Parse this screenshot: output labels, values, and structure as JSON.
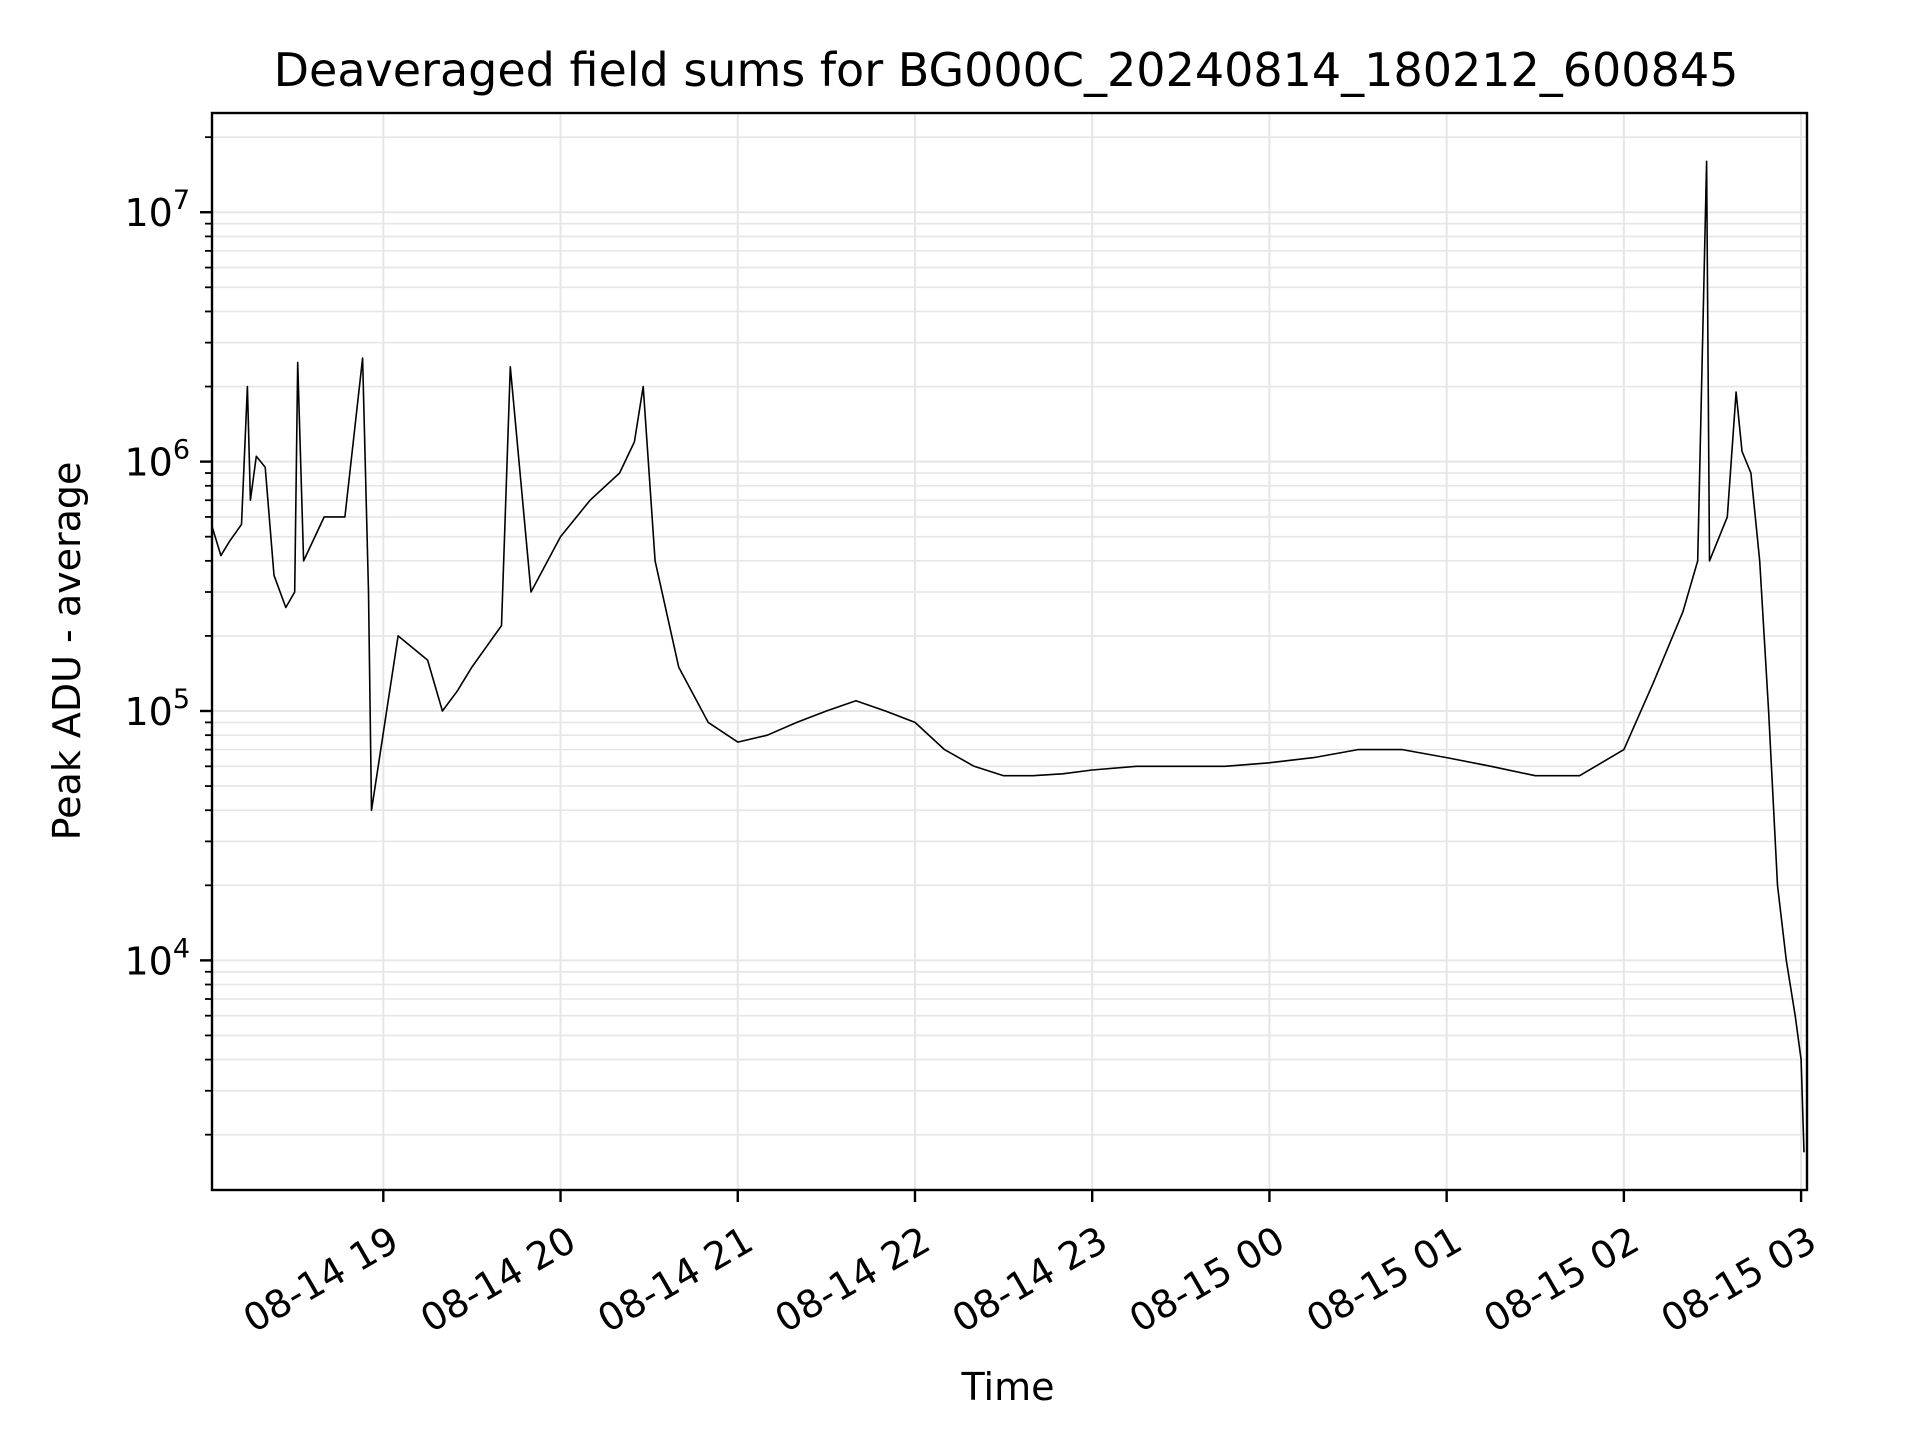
{
  "chart_data": {
    "type": "line",
    "title": "Deaveraged field sums for BG000C_20240814_180212_600845",
    "xlabel": "Time",
    "ylabel": "Peak ADU - average",
    "yscale": "log",
    "ylim": [
      1200,
      25000000
    ],
    "xlim": [
      "2024-08-14 18:02",
      "2024-08-15 03:02"
    ],
    "grid": "on",
    "line_color": "#000000",
    "grid_color": "#e6e6e6",
    "x_ticks": [
      {
        "t": "2024-08-14 19:00",
        "label": "08-14 19"
      },
      {
        "t": "2024-08-14 20:00",
        "label": "08-14 20"
      },
      {
        "t": "2024-08-14 21:00",
        "label": "08-14 21"
      },
      {
        "t": "2024-08-14 22:00",
        "label": "08-14 22"
      },
      {
        "t": "2024-08-14 23:00",
        "label": "08-14 23"
      },
      {
        "t": "2024-08-15 00:00",
        "label": "08-15 00"
      },
      {
        "t": "2024-08-15 01:00",
        "label": "08-15 01"
      },
      {
        "t": "2024-08-15 02:00",
        "label": "08-15 02"
      },
      {
        "t": "2024-08-15 03:00",
        "label": "08-15 03"
      }
    ],
    "y_ticks": [
      {
        "value": 10000,
        "base": "10",
        "exp": "4"
      },
      {
        "value": 100000,
        "base": "10",
        "exp": "5"
      },
      {
        "value": 1000000,
        "base": "10",
        "exp": "6"
      },
      {
        "value": 10000000,
        "base": "10",
        "exp": "7"
      }
    ],
    "series": [
      {
        "points": [
          [
            "2024-08-14 18:02",
            550000
          ],
          [
            "2024-08-14 18:05",
            420000
          ],
          [
            "2024-08-14 18:08",
            480000
          ],
          [
            "2024-08-14 18:12",
            560000
          ],
          [
            "2024-08-14 18:14",
            2000000
          ],
          [
            "2024-08-14 18:15",
            700000
          ],
          [
            "2024-08-14 18:17",
            1050000
          ],
          [
            "2024-08-14 18:20",
            950000
          ],
          [
            "2024-08-14 18:23",
            350000
          ],
          [
            "2024-08-14 18:27",
            260000
          ],
          [
            "2024-08-14 18:30",
            300000
          ],
          [
            "2024-08-14 18:31",
            2500000
          ],
          [
            "2024-08-14 18:33",
            400000
          ],
          [
            "2024-08-14 18:40",
            600000
          ],
          [
            "2024-08-14 18:47",
            600000
          ],
          [
            "2024-08-14 18:53",
            2600000
          ],
          [
            "2024-08-14 18:55",
            300000
          ],
          [
            "2024-08-14 18:56",
            40000
          ],
          [
            "2024-08-14 19:05",
            200000
          ],
          [
            "2024-08-14 19:15",
            160000
          ],
          [
            "2024-08-14 19:20",
            100000
          ],
          [
            "2024-08-14 19:25",
            120000
          ],
          [
            "2024-08-14 19:30",
            150000
          ],
          [
            "2024-08-14 19:40",
            220000
          ],
          [
            "2024-08-14 19:43",
            2400000
          ],
          [
            "2024-08-14 19:50",
            300000
          ],
          [
            "2024-08-14 20:00",
            500000
          ],
          [
            "2024-08-14 20:10",
            700000
          ],
          [
            "2024-08-14 20:20",
            900000
          ],
          [
            "2024-08-14 20:25",
            1200000
          ],
          [
            "2024-08-14 20:28",
            2000000
          ],
          [
            "2024-08-14 20:32",
            400000
          ],
          [
            "2024-08-14 20:40",
            150000
          ],
          [
            "2024-08-14 20:50",
            90000
          ],
          [
            "2024-08-14 21:00",
            75000
          ],
          [
            "2024-08-14 21:10",
            80000
          ],
          [
            "2024-08-14 21:20",
            90000
          ],
          [
            "2024-08-14 21:30",
            100000
          ],
          [
            "2024-08-14 21:40",
            110000
          ],
          [
            "2024-08-14 21:50",
            100000
          ],
          [
            "2024-08-14 22:00",
            90000
          ],
          [
            "2024-08-14 22:10",
            70000
          ],
          [
            "2024-08-14 22:20",
            60000
          ],
          [
            "2024-08-14 22:30",
            55000
          ],
          [
            "2024-08-14 22:40",
            55000
          ],
          [
            "2024-08-14 22:50",
            56000
          ],
          [
            "2024-08-14 23:00",
            58000
          ],
          [
            "2024-08-14 23:15",
            60000
          ],
          [
            "2024-08-14 23:30",
            60000
          ],
          [
            "2024-08-14 23:45",
            60000
          ],
          [
            "2024-08-15 00:00",
            62000
          ],
          [
            "2024-08-15 00:15",
            65000
          ],
          [
            "2024-08-15 00:30",
            70000
          ],
          [
            "2024-08-15 00:45",
            70000
          ],
          [
            "2024-08-15 01:00",
            65000
          ],
          [
            "2024-08-15 01:15",
            60000
          ],
          [
            "2024-08-15 01:30",
            55000
          ],
          [
            "2024-08-15 01:45",
            55000
          ],
          [
            "2024-08-15 02:00",
            70000
          ],
          [
            "2024-08-15 02:10",
            130000
          ],
          [
            "2024-08-15 02:20",
            250000
          ],
          [
            "2024-08-15 02:25",
            400000
          ],
          [
            "2024-08-15 02:28",
            16000000
          ],
          [
            "2024-08-15 02:29",
            400000
          ],
          [
            "2024-08-15 02:35",
            600000
          ],
          [
            "2024-08-15 02:38",
            1900000
          ],
          [
            "2024-08-15 02:40",
            1100000
          ],
          [
            "2024-08-15 02:43",
            900000
          ],
          [
            "2024-08-15 02:46",
            400000
          ],
          [
            "2024-08-15 02:49",
            100000
          ],
          [
            "2024-08-15 02:52",
            20000
          ],
          [
            "2024-08-15 02:55",
            10000
          ],
          [
            "2024-08-15 02:58",
            6000
          ],
          [
            "2024-08-15 03:00",
            4000
          ],
          [
            "2024-08-15 03:01",
            1700
          ]
        ]
      }
    ]
  }
}
